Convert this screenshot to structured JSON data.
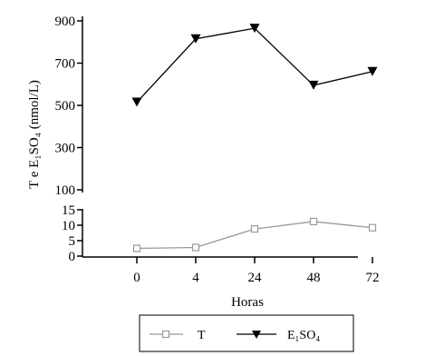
{
  "chart_data": {
    "type": "line",
    "categories": [
      "0",
      "4",
      "24",
      "48",
      "72"
    ],
    "xlabel": "Horas",
    "ylabel": "T e E₁SO₄ (nmol/L)",
    "upper_axis": {
      "ylim": [
        100,
        900
      ],
      "ticks": [
        "100",
        "300",
        "500",
        "700",
        "900"
      ]
    },
    "lower_axis": {
      "ylim": [
        0,
        15
      ],
      "ticks": [
        "0",
        "5",
        "10",
        "15"
      ]
    },
    "series": [
      {
        "name": "T",
        "axis": "lower",
        "marker": "open-square",
        "color": "#999999",
        "values": [
          2.5,
          2.8,
          8.8,
          11.2,
          9.2
        ]
      },
      {
        "name": "E₁SO₄",
        "axis": "upper",
        "marker": "filled-triangle-down",
        "color": "#000000",
        "values": [
          515,
          815,
          865,
          595,
          660
        ]
      }
    ],
    "legend_position": "bottom-center",
    "grid": false
  }
}
